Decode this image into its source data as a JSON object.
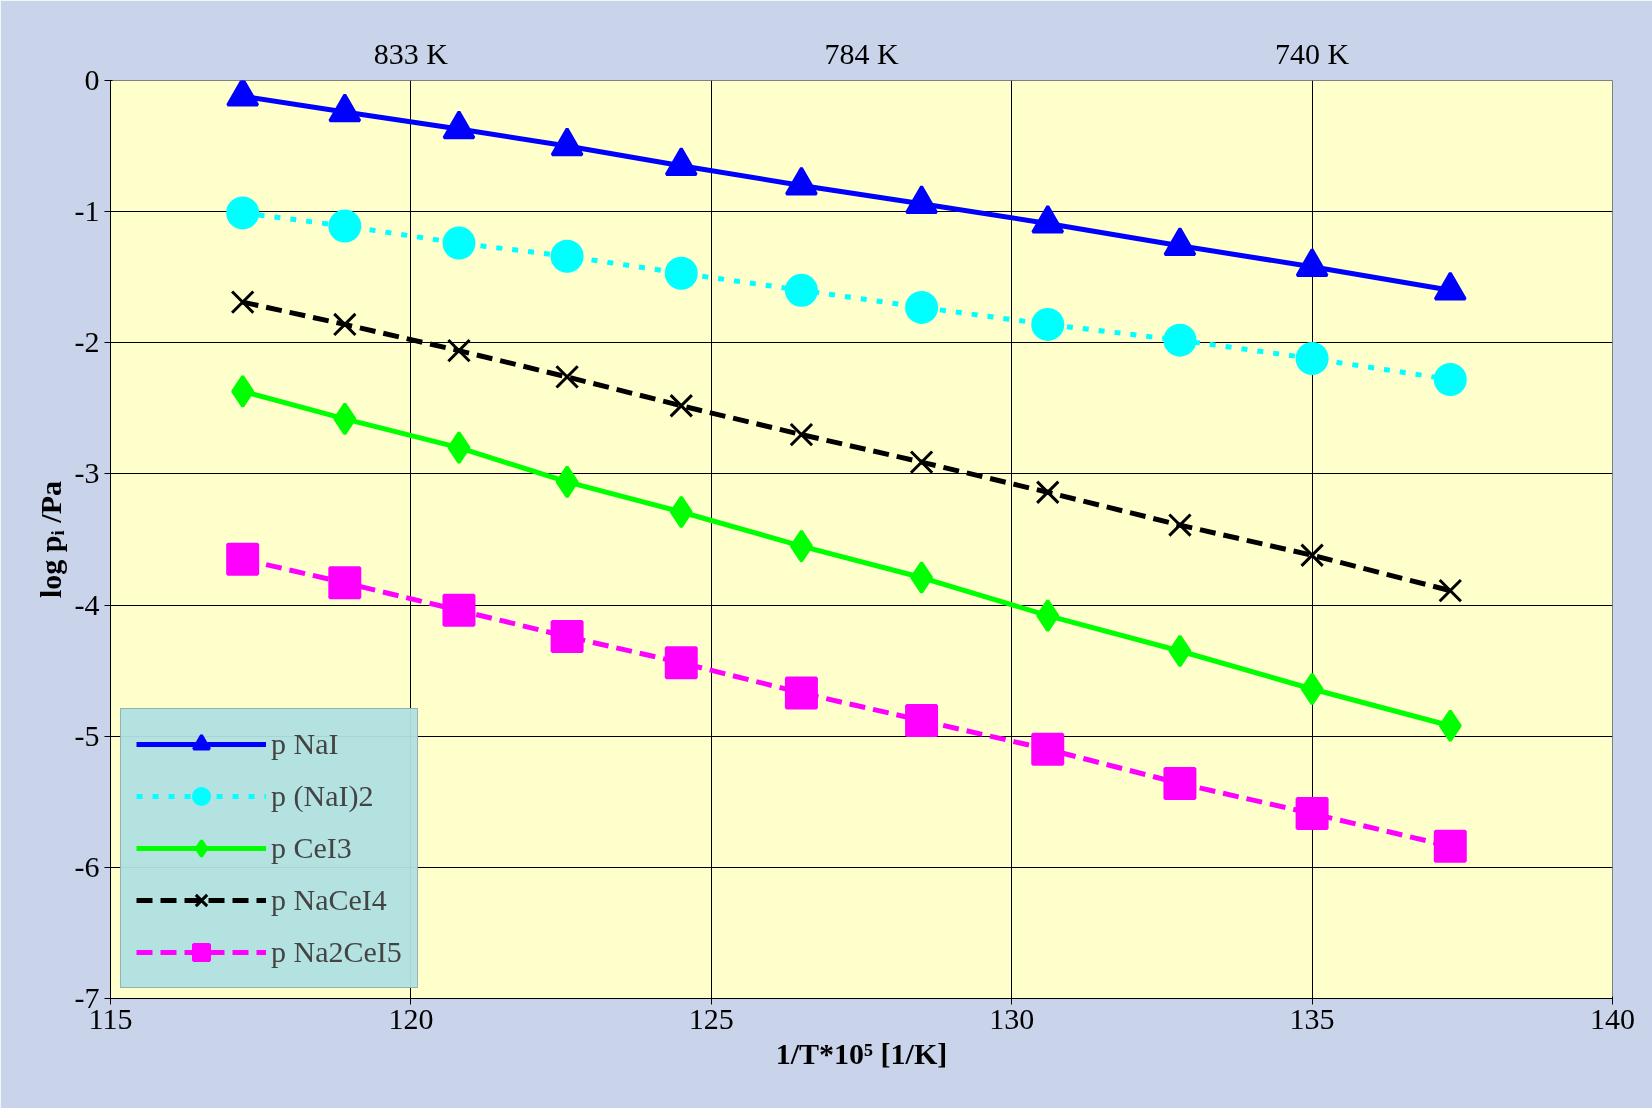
{
  "chart_data": {
    "type": "line",
    "xlabel": "1/T*10⁵ [1/K]",
    "ylabel": "log pᵢ /Pa",
    "x": [
      117.2,
      118.9,
      120.8,
      122.6,
      124.5,
      126.5,
      128.5,
      130.6,
      132.8,
      135.0,
      137.3
    ],
    "xlim": [
      115,
      140
    ],
    "xticks": [
      115,
      120,
      125,
      130,
      135,
      140
    ],
    "ylim": [
      -7,
      0
    ],
    "yticks": [
      -7,
      -6,
      -5,
      -4,
      -3,
      -2,
      -1,
      0
    ],
    "annotations": [
      "833 K",
      "784 K",
      "740 K"
    ],
    "grid": true,
    "legend": "bottom left",
    "series": [
      {
        "name": "p NaI",
        "color": "#0000ff",
        "marker": "triangle",
        "line_style": "solid",
        "values": [
          -0.12,
          -0.24,
          -0.37,
          -0.5,
          -0.65,
          -0.8,
          -0.94,
          -1.09,
          -1.26,
          -1.42,
          -1.6
        ]
      },
      {
        "name": "p (NaI)2",
        "color": "#00ffff",
        "marker": "circle",
        "line_style": "dotted",
        "values": [
          -1.01,
          -1.11,
          -1.24,
          -1.34,
          -1.47,
          -1.6,
          -1.73,
          -1.86,
          -1.98,
          -2.12,
          -2.28
        ]
      },
      {
        "name": "p CeI3",
        "color": "#00ff00",
        "marker": "diamond",
        "line_style": "solid",
        "values": [
          -2.37,
          -2.58,
          -2.8,
          -3.06,
          -3.29,
          -3.55,
          -3.79,
          -4.08,
          -4.35,
          -4.64,
          -4.92
        ]
      },
      {
        "name": "p NaCeI4",
        "color": "#000000",
        "marker": "cross",
        "line_style": "dashed",
        "values": [
          -1.69,
          -1.86,
          -2.06,
          -2.26,
          -2.48,
          -2.7,
          -2.91,
          -3.14,
          -3.39,
          -3.62,
          -3.89
        ]
      },
      {
        "name": "p Na2CeI5",
        "color": "#ff00ff",
        "marker": "square",
        "line_style": "dashed",
        "values": [
          -3.65,
          -3.83,
          -4.04,
          -4.24,
          -4.44,
          -4.67,
          -4.88,
          -5.1,
          -5.36,
          -5.59,
          -5.84
        ]
      }
    ]
  }
}
